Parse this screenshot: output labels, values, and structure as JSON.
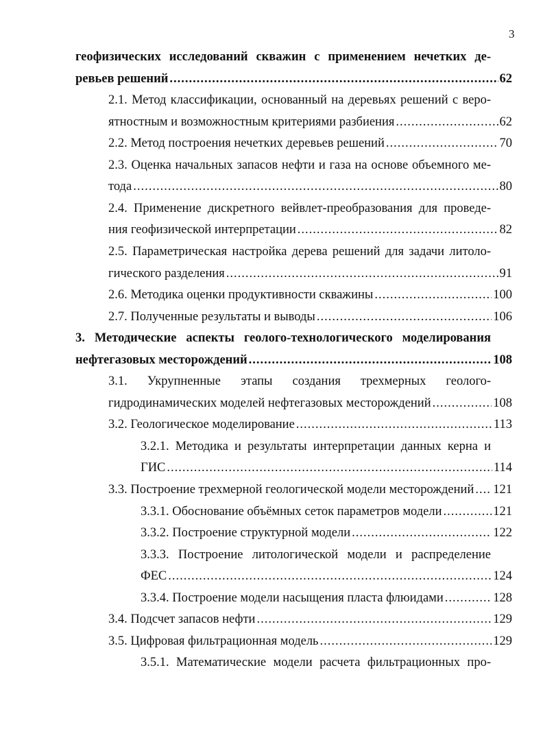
{
  "page_number": "3",
  "toc": [
    {
      "level": 0,
      "bold": true,
      "lines": [
        "геофизических исследований скважин с применением нечетких де-",
        "ревьев решений"
      ],
      "page": "62"
    },
    {
      "level": 1,
      "lines": [
        "2.1. Метод классификации, основанный на деревьях решений с веро-",
        "ятностным и возможностным критериями разбиения"
      ],
      "page": "62"
    },
    {
      "level": 1,
      "lines": [
        "2.2. Метод построения нечетких деревьев решений"
      ],
      "page": "70"
    },
    {
      "level": 1,
      "lines": [
        "2.3. Оценка начальных запасов нефти и газа на основе объемного ме-",
        "тода"
      ],
      "page": "80"
    },
    {
      "level": 1,
      "lines": [
        "2.4. Применение дискретного вейвлет-преобразования для проведе-",
        "ния геофизической интерпретации"
      ],
      "page": "82"
    },
    {
      "level": 1,
      "lines": [
        "2.5. Параметрическая настройка дерева решений для задачи литоло-",
        "гического разделения"
      ],
      "page": "91"
    },
    {
      "level": 1,
      "lines": [
        "2.6. Методика оценки продуктивности скважины"
      ],
      "page": "100"
    },
    {
      "level": 1,
      "lines": [
        "2.7. Полученные результаты и выводы"
      ],
      "page": "106"
    },
    {
      "level": 0,
      "bold": true,
      "lines": [
        "3. Методические аспекты геолого-технологического моделирования",
        "нефтегазовых месторождений"
      ],
      "page": "108"
    },
    {
      "level": 1,
      "lines": [
        "3.1. Укрупненные этапы создания трехмерных геолого-",
        "гидродинамических моделей нефтегазовых месторождений"
      ],
      "page": "108"
    },
    {
      "level": 1,
      "lines": [
        "3.2. Геологическое моделирование"
      ],
      "page": "113"
    },
    {
      "level": 2,
      "lines": [
        "3.2.1. Методика и результаты интерпретации данных керна и",
        "ГИС"
      ],
      "page": "114"
    },
    {
      "level": 1,
      "lines": [
        "3.3. Построение трехмерной геологической модели месторождений"
      ],
      "page": "121"
    },
    {
      "level": 2,
      "lines": [
        "3.3.1. Обоснование объёмных сеток параметров модели"
      ],
      "page": "121"
    },
    {
      "level": 2,
      "lines": [
        "3.3.2. Построение структурной модели"
      ],
      "page": "122"
    },
    {
      "level": 2,
      "lines": [
        "3.3.3. Построение литологической модели и распределение",
        "ФЕС"
      ],
      "page": "124"
    },
    {
      "level": 2,
      "lines": [
        "3.3.4. Построение модели насыщения пласта флюидами"
      ],
      "page": "128"
    },
    {
      "level": 1,
      "lines": [
        "3.4. Подсчет запасов нефти"
      ],
      "page": "129"
    },
    {
      "level": 1,
      "lines": [
        "3.5. Цифровая фильтрационная модель"
      ],
      "page": "129"
    },
    {
      "level": 2,
      "lines": [
        "3.5.1. Математические модели расчета фильтрационных про-"
      ]
    }
  ]
}
